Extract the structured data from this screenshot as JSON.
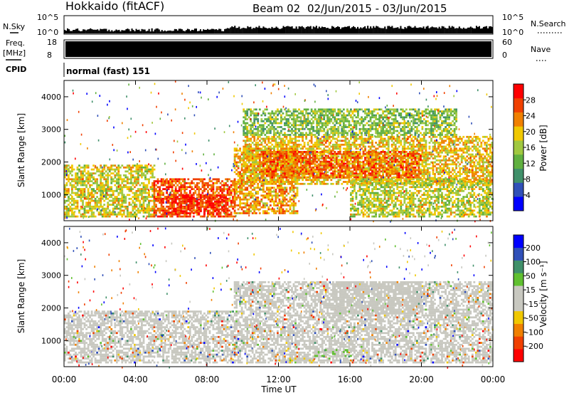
{
  "header": {
    "station": "Hokkaido (fitACF)",
    "beam": "Beam 02",
    "date_range": "02/Jun/2015 - 03/Jun/2015"
  },
  "status_panels": {
    "nsky_label": "N.Sky",
    "nsky_ticks": [
      "10^5",
      "10^0"
    ],
    "nsearch_label": "N.Search",
    "nsearch_ticks": [
      "10^5",
      "10^0"
    ],
    "freq_label": "Freq.",
    "freq_unit": "[MHz]",
    "freq_ticks": [
      "18",
      "8"
    ],
    "nave_label": "Nave",
    "nave_ticks": [
      "60",
      "0"
    ],
    "cpid_label": "CPID",
    "cpid_value": "normal (fast) 151"
  },
  "colors": {
    "power_scale": [
      "#0000ff",
      "#3050b8",
      "#40906a",
      "#60b040",
      "#a0c840",
      "#f0c800",
      "#f08000",
      "#f04000",
      "#ff0000"
    ],
    "velocity_scale": [
      "#ff0000",
      "#f04000",
      "#f08000",
      "#f0c800",
      "#c8c8c0",
      "#c8c8c0",
      "#60c030",
      "#40906a",
      "#3050b8",
      "#0000ff"
    ],
    "ground_scatter": "#c0c0b8"
  },
  "chart_data": [
    {
      "type": "heatmap",
      "title": "Power",
      "xlabel": "Time UT",
      "ylabel": "Slant Range [km]",
      "x_ticks": [
        "00:00",
        "04:00",
        "08:00",
        "12:00",
        "16:00",
        "20:00",
        "00:00"
      ],
      "y_ticks": [
        "1000",
        "2000",
        "3000",
        "4000"
      ],
      "ylim": [
        200,
        4500
      ],
      "colorbar": {
        "label": "Power [dB]",
        "ticks": [
          "4",
          "8",
          "12",
          "16",
          "20",
          "24",
          "28"
        ],
        "range": [
          0,
          32
        ]
      },
      "regions": [
        {
          "t0": 0,
          "t1": 5,
          "r0": 300,
          "r1": 1900,
          "level": 18
        },
        {
          "t0": 5,
          "t1": 9.5,
          "r0": 300,
          "r1": 1500,
          "level": 26
        },
        {
          "t0": 6,
          "t1": 9,
          "r0": 400,
          "r1": 1000,
          "level": 29
        },
        {
          "t0": 9.5,
          "t1": 13,
          "r0": 400,
          "r1": 2400,
          "level": 22
        },
        {
          "t0": 10,
          "t1": 24,
          "r0": 1300,
          "r1": 2800,
          "level": 20
        },
        {
          "t0": 11,
          "t1": 20,
          "r0": 1500,
          "r1": 2300,
          "level": 25
        },
        {
          "t0": 16,
          "t1": 24,
          "r0": 300,
          "r1": 1500,
          "level": 17
        },
        {
          "t0": 10,
          "t1": 22,
          "r0": 2800,
          "r1": 3600,
          "level": 14
        }
      ]
    },
    {
      "type": "heatmap",
      "title": "Velocity",
      "xlabel": "Time UT",
      "ylabel": "Slant Range [km]",
      "x_ticks": [
        "00:00",
        "04:00",
        "08:00",
        "12:00",
        "16:00",
        "20:00",
        "00:00"
      ],
      "y_ticks": [
        "1000",
        "2000",
        "3000",
        "4000"
      ],
      "ylim": [
        200,
        4500
      ],
      "colorbar": {
        "label": "Velocity [m s⁻¹]",
        "ticks": [
          "200",
          "100",
          "50",
          "15",
          "-15",
          "-50",
          "-100",
          "-200"
        ],
        "range": [
          -250,
          250
        ]
      },
      "regions": [
        {
          "t0": 0,
          "t1": 9.5,
          "r0": 300,
          "r1": 1900,
          "level": 0
        },
        {
          "t0": 9.5,
          "t1": 24,
          "r0": 300,
          "r1": 2800,
          "level": 0
        },
        {
          "t0": 12,
          "t1": 14,
          "r0": 300,
          "r1": 450,
          "level": -40
        },
        {
          "t0": 14,
          "t1": 16,
          "r0": 500,
          "r1": 700,
          "level": 40
        },
        {
          "t0": 15,
          "t1": 20,
          "r0": 1800,
          "r1": 2800,
          "level": 30
        }
      ]
    }
  ]
}
